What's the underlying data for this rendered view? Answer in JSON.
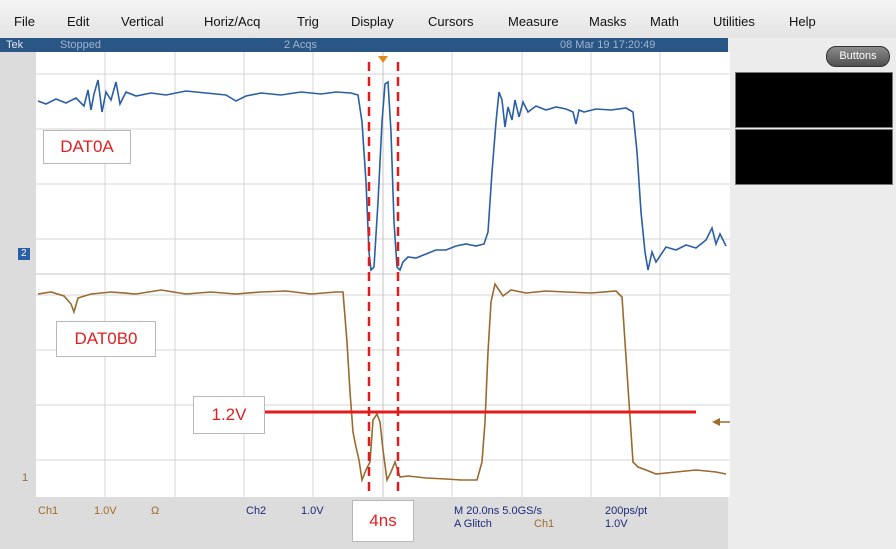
{
  "menu": [
    "File",
    "Edit",
    "Vertical",
    "Horiz/Acq",
    "Trig",
    "Display",
    "Cursors",
    "Measure",
    "Masks",
    "Math",
    "Utilities",
    "Help"
  ],
  "status": {
    "brand": "Tek",
    "state": "Stopped",
    "acqs": "2 Acqs",
    "datetime": "08 Mar 19 17:20:49"
  },
  "right_panel": {
    "buttons_label": "Buttons"
  },
  "annotations": {
    "ch2_label": "DAT0A",
    "ch1_label": "DAT0B0",
    "threshold_label": "1.2V",
    "delta_label": "4ns"
  },
  "markers": {
    "ch2_marker": "2",
    "ch1_marker": "1"
  },
  "bottom": {
    "ch1": "Ch1",
    "ch1_scale": "1.0V",
    "ch1_term": "Ω",
    "ch2": "Ch2",
    "ch2_scale": "1.0V",
    "timebase": "M 20.0ns 5.0GS/s",
    "ptrate": "200ps/pt",
    "trigger": "A  Glitch",
    "trig_src": "Ch1",
    "trig_level": "1.0V"
  },
  "colors": {
    "ch1": "#9a6a2e",
    "ch2": "#2a5ea6",
    "annotation": "#e41b1b"
  }
}
